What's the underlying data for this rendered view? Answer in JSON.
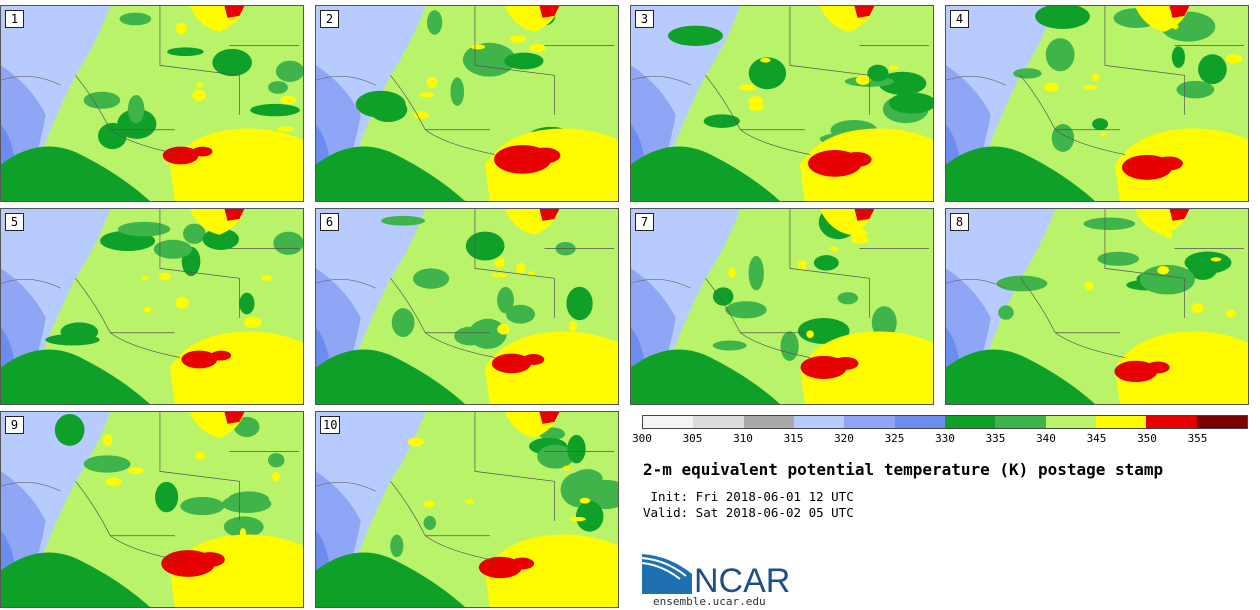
{
  "stamps": [
    {
      "label": "1"
    },
    {
      "label": "2"
    },
    {
      "label": "3"
    },
    {
      "label": "4"
    },
    {
      "label": "5"
    },
    {
      "label": "6"
    },
    {
      "label": "7"
    },
    {
      "label": "8"
    },
    {
      "label": "9"
    },
    {
      "label": "10"
    }
  ],
  "colorbar": {
    "ticks": [
      "300",
      "305",
      "310",
      "315",
      "320",
      "325",
      "330",
      "335",
      "340",
      "345",
      "350",
      "355"
    ],
    "colors": [
      "#f4f4f4",
      "#dcdcdc",
      "#a9a9a9",
      "#b7cbff",
      "#8ea6f5",
      "#6d8cf0",
      "#0fa02a",
      "#3fb44a",
      "#b9f36a",
      "#fffb00",
      "#e60000",
      "#7a0000"
    ]
  },
  "title": "2-m equivalent potential temperature (K) postage stamp",
  "init_line": " Init: Fri 2018-06-01 12 UTC",
  "valid_line": "Valid: Sat 2018-06-02 05 UTC",
  "logo": {
    "text": "NCAR",
    "url": "ensemble.ucar.edu"
  }
}
